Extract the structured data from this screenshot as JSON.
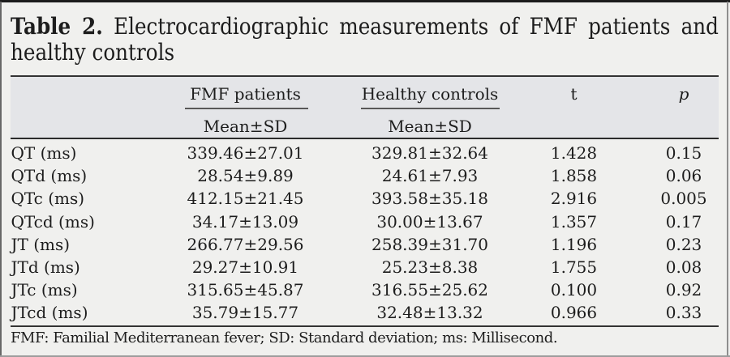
{
  "title": {
    "bold": "Table 2.",
    "line1_rest": "Electrocardiographic measurements of FMF patients and",
    "line2": "healthy controls"
  },
  "table": {
    "column_groups": [
      {
        "label": "FMF patients",
        "sub": "Mean±SD"
      },
      {
        "label": "Healthy controls",
        "sub": "Mean±SD"
      },
      {
        "label": "t"
      },
      {
        "label": "p"
      }
    ],
    "rows": [
      {
        "label": "QT (ms)",
        "fmf": "339.46±27.01",
        "healthy": "329.81±32.64",
        "t": "1.428",
        "p": "0.15"
      },
      {
        "label": "QTd (ms)",
        "fmf": "28.54±9.89",
        "healthy": "24.61±7.93",
        "t": "1.858",
        "p": "0.06"
      },
      {
        "label": "QTc (ms)",
        "fmf": "412.15±21.45",
        "healthy": "393.58±35.18",
        "t": "2.916",
        "p": "0.005"
      },
      {
        "label": "QTcd (ms)",
        "fmf": "34.17±13.09",
        "healthy": "30.00±13.67",
        "t": "1.357",
        "p": "0.17"
      },
      {
        "label": "JT (ms)",
        "fmf": "266.77±29.56",
        "healthy": "258.39±31.70",
        "t": "1.196",
        "p": "0.23"
      },
      {
        "label": "JTd (ms)",
        "fmf": "29.27±10.91",
        "healthy": "25.23±8.38",
        "t": "1.755",
        "p": "0.08"
      },
      {
        "label": "JTc (ms)",
        "fmf": "315.65±45.87",
        "healthy": "316.55±25.62",
        "t": "0.100",
        "p": "0.92"
      },
      {
        "label": "JTcd (ms)",
        "fmf": "35.79±15.77",
        "healthy": "32.48±13.32",
        "t": "0.966",
        "p": "0.33"
      }
    ]
  },
  "footnote": "FMF: Familial Mediterranean fever; SD: Standard deviation; ms: Millisecond.",
  "colors": {
    "background": "#f0f0ee",
    "header_band": "#e4e5e8",
    "rule_dark": "#2f2f2f",
    "rule_mid": "#585858",
    "top_bar": "#1c1c1c",
    "bottom_bar": "#9c9c9c",
    "text": "#1d1d1d"
  }
}
